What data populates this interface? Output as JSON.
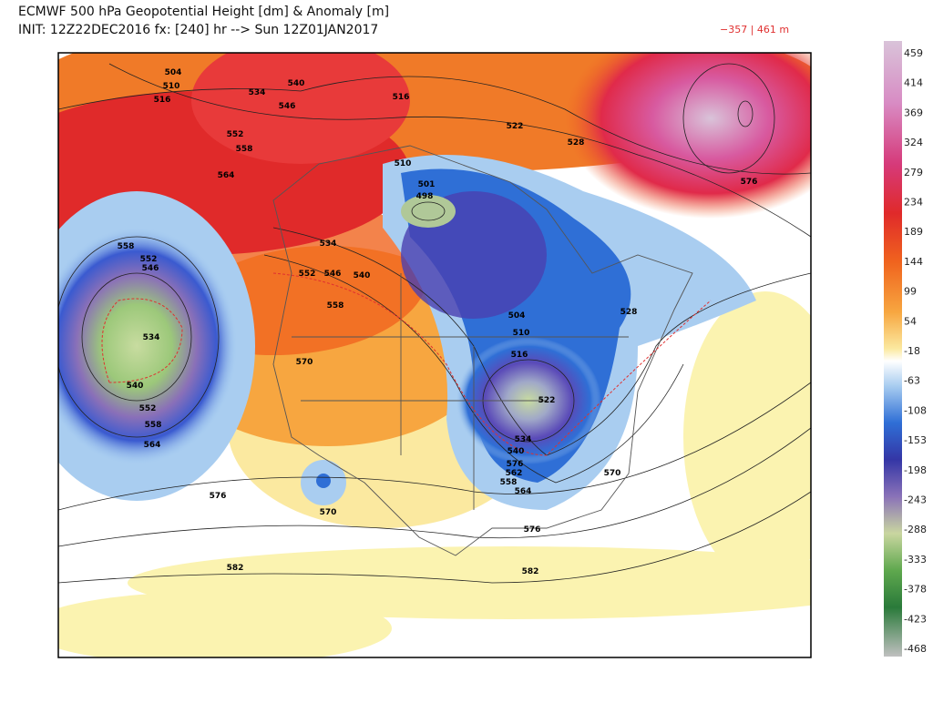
{
  "header": {
    "title_line1": "ECMWF 500 hPa Geopotential Height [dm] & Anomaly [m]",
    "title_line2": "INIT: 12Z22DEC2016 fx: [240] hr --> Sun 12Z01JAN2017",
    "range": "−357 | 461 m"
  },
  "colorbar": {
    "labels": [
      459,
      414,
      369,
      324,
      279,
      234,
      189,
      144,
      99,
      54,
      -18,
      -63,
      -108,
      -153,
      -198,
      -243,
      -288,
      -333,
      -378,
      -423,
      -468
    ]
  },
  "contour_labels": [
    "504",
    "510",
    "516",
    "534",
    "540",
    "546",
    "552",
    "558",
    "564",
    "516",
    "522",
    "528",
    "576",
    "510",
    "501",
    "498",
    "534",
    "558",
    "552",
    "546",
    "552",
    "546",
    "540",
    "558",
    "504",
    "510",
    "516",
    "528",
    "570",
    "534",
    "540",
    "552",
    "558",
    "564",
    "522",
    "534",
    "540",
    "576",
    "562",
    "558",
    "564",
    "570",
    "576",
    "570",
    "576",
    "582",
    "582"
  ]
}
